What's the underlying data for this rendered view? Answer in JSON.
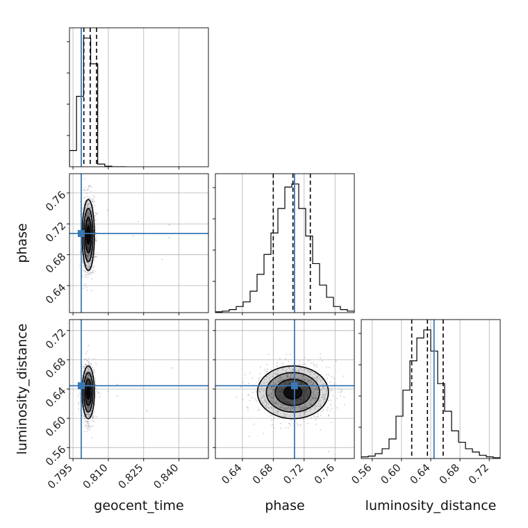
{
  "chart_data": {
    "type": "corner",
    "parameters": [
      "geocent_time",
      "phase",
      "luminosity_distance"
    ],
    "axis_labels": {
      "geocent_time": "geocent_time",
      "phase": "phase",
      "luminosity_distance": "luminosity_distance"
    },
    "ranges": {
      "geocent_time": [
        0.7935,
        0.8525
      ],
      "phase": [
        0.605,
        0.785
      ],
      "luminosity_distance": [
        0.545,
        0.735
      ]
    },
    "ticks": {
      "geocent_time": [
        "0.795",
        "0.810",
        "0.825",
        "0.840"
      ],
      "phase": [
        "0.64",
        "0.68",
        "0.72",
        "0.76"
      ],
      "luminosity_distance": [
        "0.56",
        "0.60",
        "0.64",
        "0.68",
        "0.72"
      ]
    },
    "truths": {
      "geocent_time": 0.7985,
      "phase": 0.7075,
      "luminosity_distance": 0.6445
    },
    "quantiles": {
      "geocent_time": [
        0.7996,
        0.8023,
        0.805
      ],
      "phase": [
        0.68,
        0.7055,
        0.728
      ],
      "luminosity_distance": [
        0.614,
        0.6355,
        0.657
      ]
    },
    "histograms": {
      "geocent_time": {
        "bin_edges": [
          0.7935,
          0.7965,
          0.7995,
          0.8025,
          0.8055,
          0.8085,
          0.8115,
          0.8145,
          0.8175
        ],
        "counts": [
          12,
          52,
          95,
          76,
          2,
          0.4,
          0,
          0
        ]
      },
      "phase": {
        "bin_edges": [
          0.605,
          0.614,
          0.623,
          0.632,
          0.641,
          0.65,
          0.659,
          0.668,
          0.677,
          0.686,
          0.695,
          0.704,
          0.713,
          0.722,
          0.731,
          0.74,
          0.749,
          0.758,
          0.767,
          0.776,
          0.785
        ],
        "counts": [
          0.5,
          1,
          2,
          4,
          7,
          14,
          25,
          38,
          52,
          68,
          82,
          84,
          68,
          50,
          32,
          18,
          10,
          4,
          2,
          1
        ]
      },
      "luminosity_distance": {
        "bin_edges": [
          0.545,
          0.5545,
          0.564,
          0.5735,
          0.583,
          0.5925,
          0.602,
          0.6115,
          0.621,
          0.6305,
          0.64,
          0.6495,
          0.659,
          0.6685,
          0.678,
          0.6875,
          0.697,
          0.7065,
          0.716,
          0.7255,
          0.735
        ],
        "counts": [
          1,
          1.5,
          3,
          6,
          12,
          26,
          42,
          60,
          74,
          79,
          66,
          46,
          29,
          17,
          10,
          6,
          4,
          2,
          1,
          0.5
        ]
      }
    },
    "scatter_2d": {
      "phase|geocent_time": {
        "center": [
          0.8015,
          0.7055
        ],
        "spread": [
          0.0013,
          0.023
        ]
      },
      "luminosity_distance|geocent_time": {
        "center": [
          0.8015,
          0.6355
        ],
        "spread": [
          0.0013,
          0.018
        ]
      },
      "luminosity_distance|phase": {
        "center": [
          0.7055,
          0.6355
        ],
        "spread": [
          0.023,
          0.018
        ]
      }
    },
    "contour_levels_sigma": [
      0.5,
      1.0,
      1.5,
      2.0
    ],
    "grid": true,
    "colors": {
      "hist_line": "#000000",
      "truth_line": "#3a78b5",
      "quantile_line": "#000000",
      "points": "#808080",
      "density_dark": "#111111",
      "grid": "#b0b0b0"
    }
  }
}
